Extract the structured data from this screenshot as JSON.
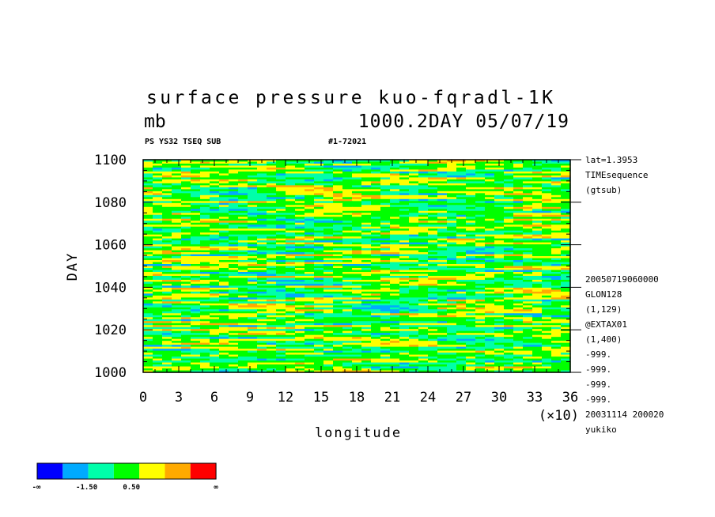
{
  "chart_data": {
    "type": "heatmap",
    "title": "surface pressure kuo-fqradl-1K",
    "units": "mb",
    "header_right": "1000.2DAY 05/07/19",
    "subtitle_left": "PS YS32 TSEQ SUB",
    "subtitle_right": "#1-72021",
    "xlabel": "longitude",
    "ylabel": "DAY",
    "x_multiplier": "(×10)",
    "xlim": [
      0,
      36
    ],
    "ylim": [
      1000,
      1100
    ],
    "x_ticks": [
      "0",
      "3",
      "6",
      "9",
      "12",
      "15",
      "18",
      "21",
      "24",
      "27",
      "30",
      "33",
      "36"
    ],
    "y_ticks": [
      "1000",
      "1020",
      "1040",
      "1060",
      "1080",
      "1100"
    ],
    "side_info_top": [
      "lat=1.3953",
      "TIMEsequence",
      "(gtsub)"
    ],
    "side_info_bottom": [
      "20050719060000",
      "GLON128",
      "(1,129)",
      "@EXTAX01",
      "(1,400)",
      "-999.",
      "-999.",
      "-999.",
      "-999.",
      "20031114 200020",
      "yukiko"
    ],
    "colorbar": {
      "colors": [
        "#0000ff",
        "#00aaff",
        "#00ffaa",
        "#00ff00",
        "#ffff00",
        "#ffaa00",
        "#ff0000"
      ],
      "labels": [
        "-∞",
        "-1.50",
        "0.50",
        "∞"
      ]
    }
  }
}
